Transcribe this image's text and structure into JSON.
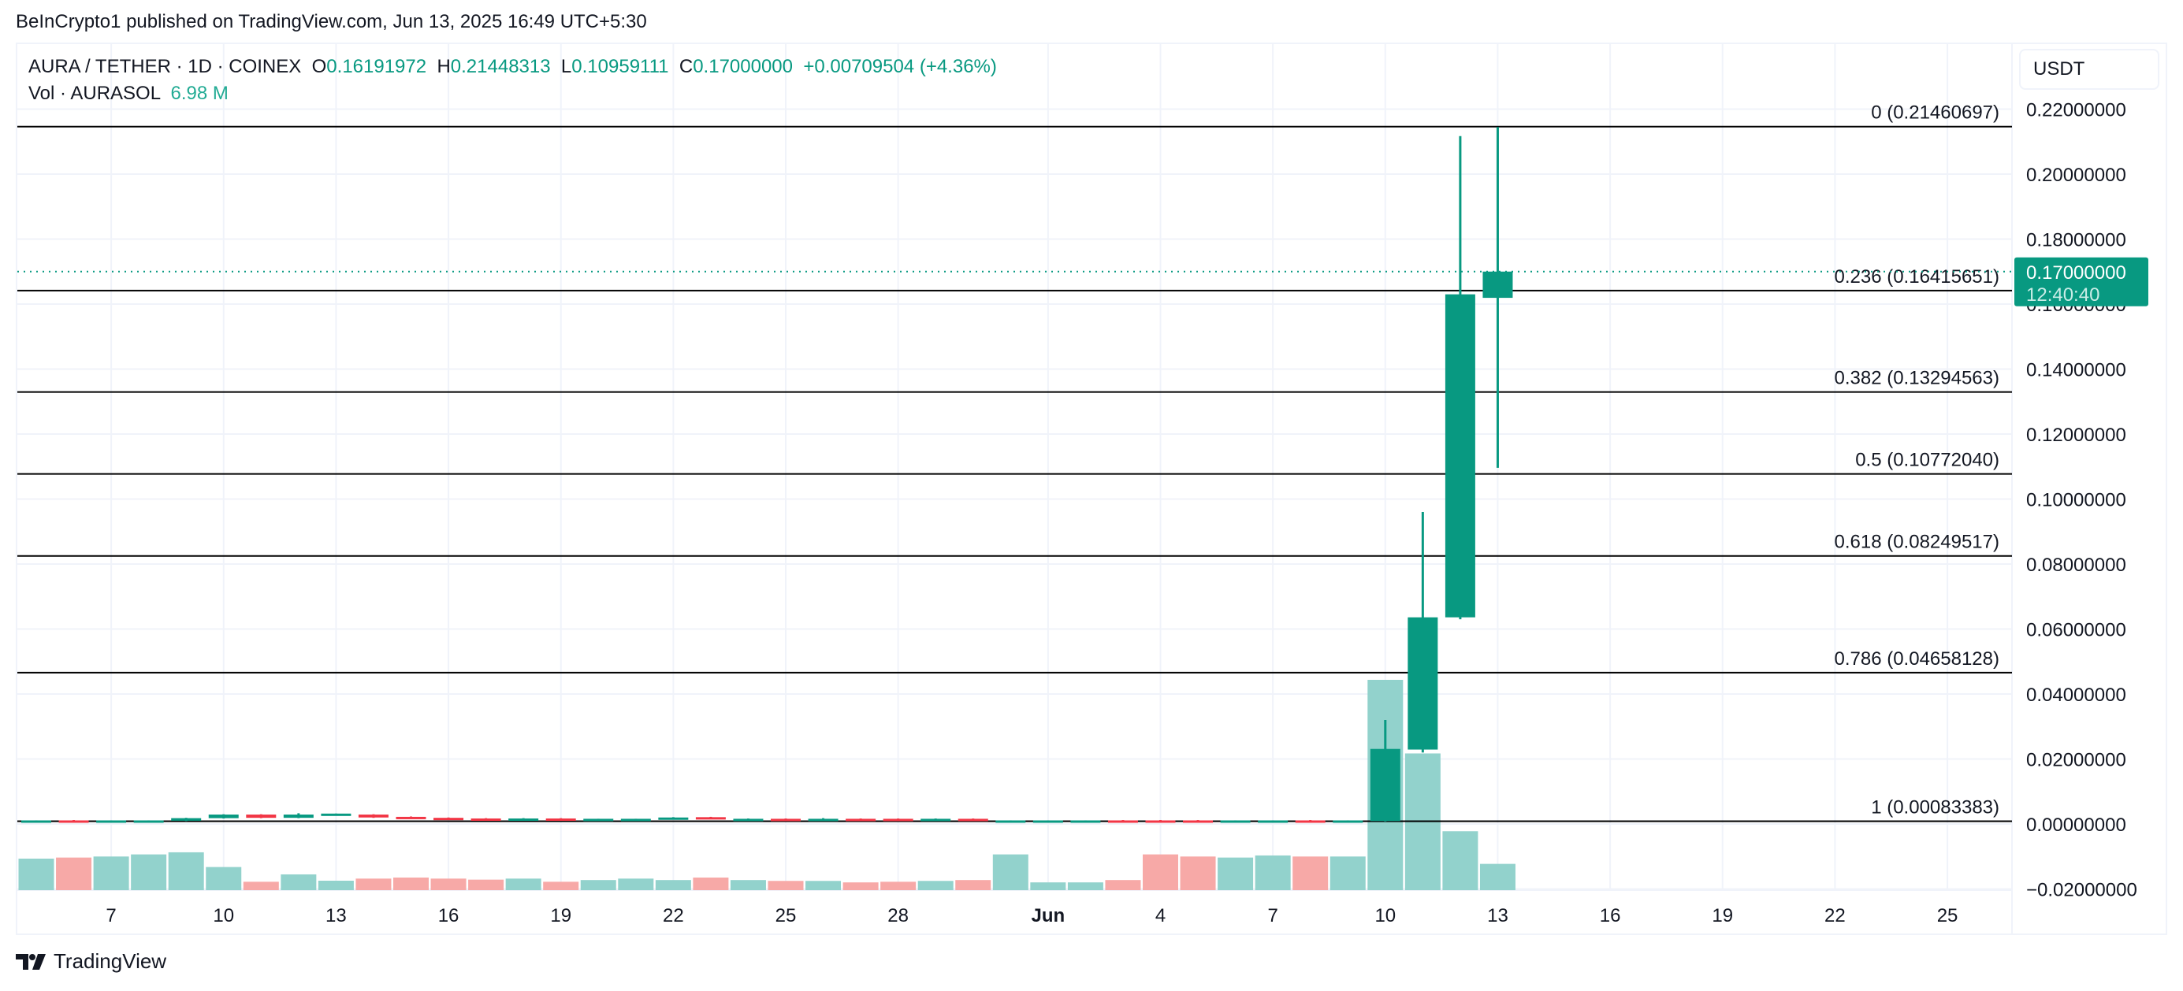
{
  "header": {
    "published": "BeInCrypto1 published on TradingView.com, Jun 13, 2025 16:49 UTC+5:30"
  },
  "legend": {
    "symbol": "AURA / TETHER · 1D · COINEX",
    "o_label": "O",
    "o_value": "0.16191972",
    "h_label": "H",
    "h_value": "0.21448313",
    "l_label": "L",
    "l_value": "0.10959111",
    "c_label": "C",
    "c_value": "0.17000000",
    "change": "+0.00709504 (+4.36%)",
    "vol_label": "Vol · AURASOL",
    "vol_value": "6.98 M"
  },
  "currency_button": "USDT",
  "footer": {
    "brand": "TradingView"
  },
  "colors": {
    "up": "#089981",
    "down": "#f23645",
    "vol_up": "#92d2cc",
    "vol_down": "#f7a9a7",
    "grid": "#f0f3fa",
    "fib_line": "#000000"
  },
  "price_label": {
    "value": "0.17000000",
    "countdown": "12:40:40"
  },
  "chart_data": {
    "type": "candlestick",
    "title": "AURA / TETHER · 1D · COINEX",
    "xlabel": "",
    "ylabel": "USDT",
    "ylim": [
      -0.02,
      0.22
    ],
    "y_ticks": [
      "0.22000000",
      "0.20000000",
      "0.18000000",
      "0.16000000",
      "0.14000000",
      "0.12000000",
      "0.10000000",
      "0.08000000",
      "0.06000000",
      "0.04000000",
      "0.02000000",
      "0.00000000",
      "−0.02000000"
    ],
    "x_ticks": [
      "7",
      "10",
      "13",
      "16",
      "19",
      "22",
      "25",
      "28",
      "Jun",
      "4",
      "7",
      "10",
      "13",
      "16",
      "19",
      "22",
      "25"
    ],
    "grid": true,
    "fib_levels": [
      {
        "ratio": "0",
        "price": 0.21460697,
        "label": "0 (0.21460697)"
      },
      {
        "ratio": "0.236",
        "price": 0.16415651,
        "label": "0.236 (0.16415651)"
      },
      {
        "ratio": "0.382",
        "price": 0.13294563,
        "label": "0.382 (0.13294563)"
      },
      {
        "ratio": "0.5",
        "price": 0.1077204,
        "label": "0.5 (0.10772040)"
      },
      {
        "ratio": "0.618",
        "price": 0.08249517,
        "label": "0.618 (0.08249517)"
      },
      {
        "ratio": "0.786",
        "price": 0.04658128,
        "label": "0.786 (0.04658128)"
      },
      {
        "ratio": "1",
        "price": 0.00083383,
        "label": "1 (0.00083383)"
      }
    ],
    "current_price": 0.17,
    "candles": [
      {
        "date": "May 5",
        "o": 0.0009,
        "h": 0.0011,
        "l": 0.0008,
        "c": 0.0011
      },
      {
        "date": "May 6",
        "o": 0.0011,
        "h": 0.0012,
        "l": 0.0008,
        "c": 0.0009
      },
      {
        "date": "May 7",
        "o": 0.0009,
        "h": 0.0011,
        "l": 0.0008,
        "c": 0.0011
      },
      {
        "date": "May 8",
        "o": 0.0009,
        "h": 0.0011,
        "l": 0.0008,
        "c": 0.0011
      },
      {
        "date": "May 9",
        "o": 0.001,
        "h": 0.0019,
        "l": 0.0009,
        "c": 0.0018
      },
      {
        "date": "May 10",
        "o": 0.0018,
        "h": 0.003,
        "l": 0.0017,
        "c": 0.0029
      },
      {
        "date": "May 11",
        "o": 0.0029,
        "h": 0.003,
        "l": 0.0018,
        "c": 0.0019
      },
      {
        "date": "May 12",
        "o": 0.0019,
        "h": 0.0033,
        "l": 0.0018,
        "c": 0.0029
      },
      {
        "date": "May 13",
        "o": 0.003,
        "h": 0.0032,
        "l": 0.0028,
        "c": 0.0032
      },
      {
        "date": "May 14",
        "o": 0.0029,
        "h": 0.003,
        "l": 0.0019,
        "c": 0.002
      },
      {
        "date": "May 15",
        "o": 0.0022,
        "h": 0.0023,
        "l": 0.0018,
        "c": 0.0019
      },
      {
        "date": "May 16",
        "o": 0.0019,
        "h": 0.002,
        "l": 0.0015,
        "c": 0.0016
      },
      {
        "date": "May 17",
        "o": 0.0017,
        "h": 0.0018,
        "l": 0.0013,
        "c": 0.0014
      },
      {
        "date": "May 18",
        "o": 0.0014,
        "h": 0.0018,
        "l": 0.0013,
        "c": 0.0017
      },
      {
        "date": "May 19",
        "o": 0.0017,
        "h": 0.0018,
        "l": 0.0013,
        "c": 0.0014
      },
      {
        "date": "May 20",
        "o": 0.0014,
        "h": 0.0016,
        "l": 0.0013,
        "c": 0.0016
      },
      {
        "date": "May 21",
        "o": 0.0014,
        "h": 0.0016,
        "l": 0.0013,
        "c": 0.0016
      },
      {
        "date": "May 22",
        "o": 0.0017,
        "h": 0.0021,
        "l": 0.0016,
        "c": 0.002
      },
      {
        "date": "May 23",
        "o": 0.0021,
        "h": 0.0022,
        "l": 0.0016,
        "c": 0.0017
      },
      {
        "date": "May 24",
        "o": 0.0014,
        "h": 0.0017,
        "l": 0.0013,
        "c": 0.0016
      },
      {
        "date": "May 25",
        "o": 0.0016,
        "h": 0.0017,
        "l": 0.0013,
        "c": 0.0014
      },
      {
        "date": "May 26",
        "o": 0.0014,
        "h": 0.0018,
        "l": 0.0013,
        "c": 0.0016
      },
      {
        "date": "May 27",
        "o": 0.0016,
        "h": 0.0017,
        "l": 0.0013,
        "c": 0.0014
      },
      {
        "date": "May 28",
        "o": 0.0016,
        "h": 0.0017,
        "l": 0.0013,
        "c": 0.0014
      },
      {
        "date": "May 29",
        "o": 0.0014,
        "h": 0.0017,
        "l": 0.0013,
        "c": 0.0016
      },
      {
        "date": "May 30",
        "o": 0.0016,
        "h": 0.0017,
        "l": 0.0013,
        "c": 0.0014
      },
      {
        "date": "May 31",
        "o": 0.0009,
        "h": 0.0011,
        "l": 0.0008,
        "c": 0.0011
      },
      {
        "date": "Jun 1",
        "o": 0.0009,
        "h": 0.0011,
        "l": 0.0008,
        "c": 0.0011
      },
      {
        "date": "Jun 2",
        "o": 0.0009,
        "h": 0.0011,
        "l": 0.0008,
        "c": 0.0011
      },
      {
        "date": "Jun 3",
        "o": 0.0011,
        "h": 0.0012,
        "l": 0.0008,
        "c": 0.0009
      },
      {
        "date": "Jun 4",
        "o": 0.0011,
        "h": 0.0012,
        "l": 0.0008,
        "c": 0.0009
      },
      {
        "date": "Jun 5",
        "o": 0.0011,
        "h": 0.0012,
        "l": 0.0008,
        "c": 0.0009
      },
      {
        "date": "Jun 6",
        "o": 0.0009,
        "h": 0.0011,
        "l": 0.0008,
        "c": 0.0011
      },
      {
        "date": "Jun 7",
        "o": 0.0009,
        "h": 0.0011,
        "l": 0.0008,
        "c": 0.0011
      },
      {
        "date": "Jun 8",
        "o": 0.0011,
        "h": 0.0012,
        "l": 0.0008,
        "c": 0.0009
      },
      {
        "date": "Jun 9",
        "o": 0.0009,
        "h": 0.0011,
        "l": 0.0008,
        "c": 0.0011
      },
      {
        "date": "Jun 10",
        "o": 0.0009,
        "h": 0.032,
        "l": 0.0008,
        "c": 0.0231
      },
      {
        "date": "Jun 11",
        "o": 0.0229,
        "h": 0.096,
        "l": 0.022,
        "c": 0.0636
      },
      {
        "date": "Jun 12",
        "o": 0.0636,
        "h": 0.2117,
        "l": 0.063,
        "c": 0.163
      },
      {
        "date": "Jun 13",
        "o": 0.16191972,
        "h": 0.21448313,
        "l": 0.10959111,
        "c": 0.17
      }
    ],
    "volume": {
      "name": "Vol · AURASOL",
      "last": "6.98 M",
      "bars_relative_height": [
        {
          "date": "May 4",
          "v": 0.16,
          "dir": "down"
        },
        {
          "date": "May 5",
          "v": 0.15,
          "dir": "up"
        },
        {
          "date": "May 6",
          "v": 0.155,
          "dir": "down"
        },
        {
          "date": "May 7",
          "v": 0.16,
          "dir": "up"
        },
        {
          "date": "May 8",
          "v": 0.17,
          "dir": "up"
        },
        {
          "date": "May 9",
          "v": 0.18,
          "dir": "up"
        },
        {
          "date": "May 10",
          "v": 0.11,
          "dir": "up"
        },
        {
          "date": "May 11",
          "v": 0.04,
          "dir": "down"
        },
        {
          "date": "May 12",
          "v": 0.075,
          "dir": "up"
        },
        {
          "date": "May 13",
          "v": 0.045,
          "dir": "up"
        },
        {
          "date": "May 14",
          "v": 0.055,
          "dir": "down"
        },
        {
          "date": "May 15",
          "v": 0.06,
          "dir": "down"
        },
        {
          "date": "May 16",
          "v": 0.055,
          "dir": "down"
        },
        {
          "date": "May 17",
          "v": 0.05,
          "dir": "down"
        },
        {
          "date": "May 18",
          "v": 0.055,
          "dir": "up"
        },
        {
          "date": "May 19",
          "v": 0.04,
          "dir": "down"
        },
        {
          "date": "May 20",
          "v": 0.048,
          "dir": "up"
        },
        {
          "date": "May 21",
          "v": 0.055,
          "dir": "up"
        },
        {
          "date": "May 22",
          "v": 0.048,
          "dir": "up"
        },
        {
          "date": "May 23",
          "v": 0.06,
          "dir": "down"
        },
        {
          "date": "May 24",
          "v": 0.048,
          "dir": "up"
        },
        {
          "date": "May 25",
          "v": 0.044,
          "dir": "down"
        },
        {
          "date": "May 26",
          "v": 0.044,
          "dir": "up"
        },
        {
          "date": "May 27",
          "v": 0.037,
          "dir": "down"
        },
        {
          "date": "May 28",
          "v": 0.04,
          "dir": "down"
        },
        {
          "date": "May 29",
          "v": 0.044,
          "dir": "up"
        },
        {
          "date": "May 30",
          "v": 0.048,
          "dir": "down"
        },
        {
          "date": "May 31",
          "v": 0.17,
          "dir": "up"
        },
        {
          "date": "Jun 1",
          "v": 0.037,
          "dir": "up"
        },
        {
          "date": "Jun 2",
          "v": 0.037,
          "dir": "up"
        },
        {
          "date": "Jun 3",
          "v": 0.048,
          "dir": "down"
        },
        {
          "date": "Jun 4",
          "v": 0.17,
          "dir": "down"
        },
        {
          "date": "Jun 5",
          "v": 0.16,
          "dir": "down"
        },
        {
          "date": "Jun 6",
          "v": 0.155,
          "dir": "up"
        },
        {
          "date": "Jun 7",
          "v": 0.165,
          "dir": "up"
        },
        {
          "date": "Jun 8",
          "v": 0.16,
          "dir": "down"
        },
        {
          "date": "Jun 9",
          "v": 0.16,
          "dir": "up"
        },
        {
          "date": "Jun 10",
          "v": 1.0,
          "dir": "up"
        },
        {
          "date": "Jun 11",
          "v": 0.65,
          "dir": "up"
        },
        {
          "date": "Jun 12",
          "v": 0.28,
          "dir": "up"
        },
        {
          "date": "Jun 13",
          "v": 0.125,
          "dir": "up"
        }
      ]
    }
  }
}
